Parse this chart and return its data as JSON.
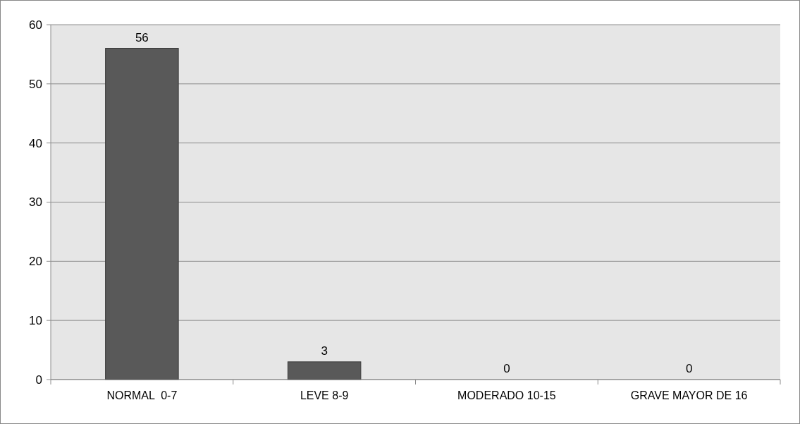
{
  "chart_data": {
    "type": "bar",
    "categories": [
      "NORMAL  0-7",
      "LEVE 8-9",
      "MODERADO 10-15",
      "GRAVE MAYOR DE 16"
    ],
    "values": [
      56,
      3,
      0,
      0
    ],
    "color": "#595959",
    "ylim": [
      0,
      60
    ],
    "yticks": [
      0,
      10,
      20,
      30,
      40,
      50,
      60
    ],
    "grid": "y",
    "data_labels": true
  }
}
